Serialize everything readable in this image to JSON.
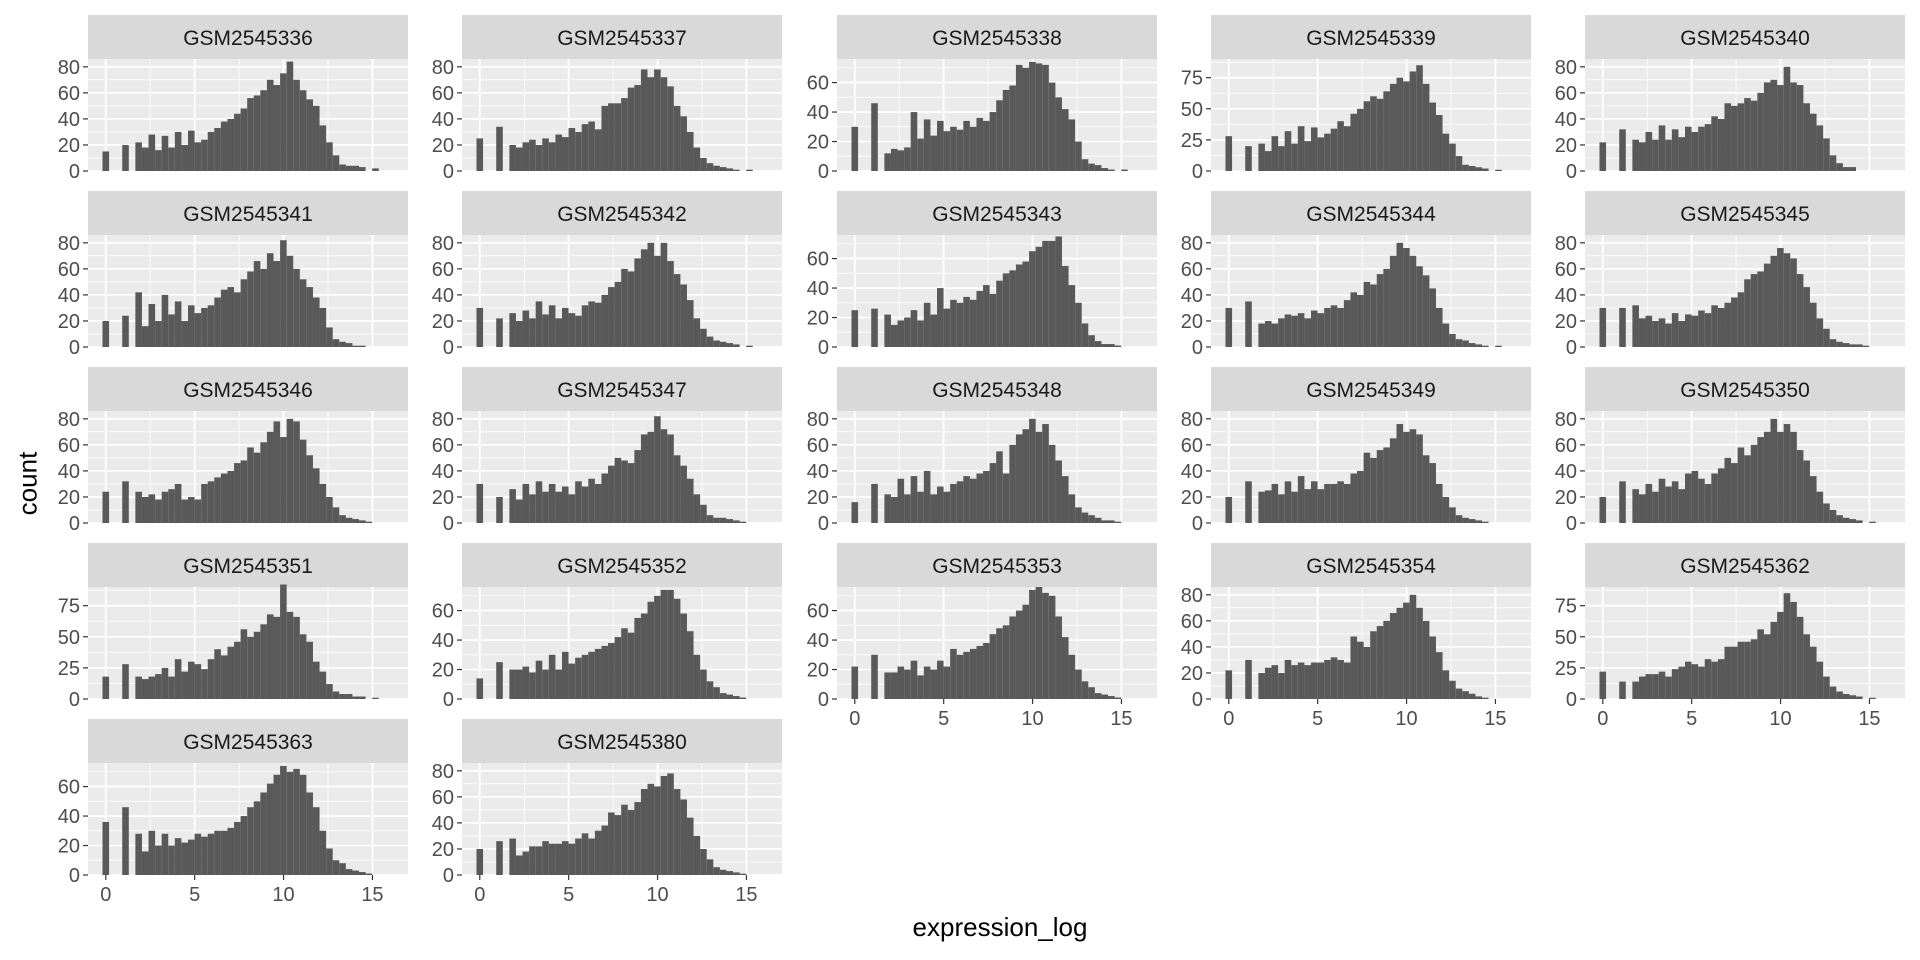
{
  "chart_data": {
    "type": "bar",
    "subtype": "faceted-histogram",
    "title": "",
    "xlabel": "expression_log",
    "ylabel": "count",
    "xlim": [
      -1,
      17
    ],
    "x_ticks": [
      0,
      5,
      10,
      15
    ],
    "bin_width": 0.37,
    "x": [
      0.0,
      0.37,
      0.74,
      1.11,
      1.48,
      1.85,
      2.22,
      2.59,
      2.96,
      3.33,
      3.7,
      4.07,
      4.44,
      4.81,
      5.18,
      5.55,
      5.92,
      6.29,
      6.66,
      7.03,
      7.4,
      7.77,
      8.14,
      8.51,
      8.88,
      9.25,
      9.62,
      9.99,
      10.36,
      10.73,
      11.1,
      11.47,
      11.84,
      12.21,
      12.58,
      12.95,
      13.32,
      13.69,
      14.06,
      14.43,
      14.8,
      15.17,
      15.54,
      15.91,
      16.28
    ],
    "grid": true,
    "legend": "none",
    "colors": {
      "bar": "#595959",
      "panel": "#ebebeb",
      "strip": "#d9d9d9",
      "grid": "#ffffff"
    },
    "facets": [
      {
        "name": "GSM2545336",
        "y_ticks": [
          0,
          20,
          40,
          60,
          80
        ],
        "ymax": 86,
        "values": [
          15,
          0,
          0,
          20,
          0,
          22,
          18,
          28,
          16,
          27,
          18,
          30,
          20,
          31,
          22,
          24,
          30,
          33,
          38,
          40,
          44,
          48,
          56,
          58,
          62,
          70,
          66,
          75,
          84,
          70,
          62,
          55,
          50,
          35,
          22,
          12,
          5,
          4,
          4,
          3,
          0,
          2,
          0,
          0,
          0
        ]
      },
      {
        "name": "GSM2545337",
        "y_ticks": [
          0,
          20,
          40,
          60,
          80
        ],
        "ymax": 86,
        "values": [
          25,
          0,
          0,
          34,
          0,
          20,
          18,
          22,
          24,
          20,
          25,
          22,
          28,
          26,
          33,
          30,
          36,
          38,
          32,
          50,
          52,
          52,
          56,
          64,
          66,
          78,
          72,
          78,
          72,
          65,
          50,
          42,
          30,
          18,
          10,
          6,
          4,
          3,
          2,
          1,
          0,
          1,
          0,
          0,
          0
        ]
      },
      {
        "name": "GSM2545338",
        "y_ticks": [
          0,
          20,
          40,
          60
        ],
        "ymax": 76,
        "values": [
          30,
          0,
          0,
          46,
          0,
          12,
          15,
          14,
          16,
          40,
          22,
          35,
          24,
          34,
          27,
          30,
          28,
          34,
          30,
          36,
          34,
          40,
          48,
          55,
          58,
          72,
          70,
          74,
          73,
          72,
          60,
          50,
          42,
          35,
          20,
          8,
          5,
          4,
          2,
          1,
          0,
          1,
          0,
          0,
          0
        ]
      },
      {
        "name": "GSM2545339",
        "y_ticks": [
          0,
          25,
          50,
          75
        ],
        "ymax": 90,
        "values": [
          28,
          0,
          0,
          20,
          0,
          22,
          16,
          28,
          20,
          32,
          22,
          36,
          24,
          35,
          27,
          30,
          34,
          40,
          36,
          46,
          50,
          56,
          60,
          58,
          64,
          70,
          75,
          72,
          80,
          85,
          70,
          55,
          45,
          30,
          22,
          12,
          5,
          4,
          3,
          2,
          0,
          1,
          0,
          0,
          0
        ]
      },
      {
        "name": "GSM2545340",
        "y_ticks": [
          0,
          20,
          40,
          60,
          80
        ],
        "ymax": 86,
        "values": [
          22,
          0,
          0,
          32,
          0,
          24,
          22,
          30,
          24,
          35,
          24,
          32,
          26,
          34,
          30,
          34,
          36,
          42,
          40,
          52,
          50,
          52,
          56,
          54,
          60,
          68,
          70,
          66,
          80,
          68,
          66,
          52,
          44,
          35,
          25,
          12,
          6,
          3,
          3,
          0,
          0,
          0,
          0,
          0,
          0
        ]
      },
      {
        "name": "GSM2545341",
        "y_ticks": [
          0,
          20,
          40,
          60,
          80
        ],
        "ymax": 86,
        "values": [
          20,
          0,
          0,
          24,
          0,
          42,
          16,
          33,
          20,
          40,
          25,
          35,
          20,
          32,
          26,
          30,
          32,
          38,
          44,
          46,
          42,
          52,
          58,
          66,
          60,
          72,
          66,
          82,
          70,
          60,
          52,
          46,
          38,
          30,
          15,
          6,
          4,
          3,
          1,
          1,
          0,
          0,
          0,
          0,
          0
        ]
      },
      {
        "name": "GSM2545342",
        "y_ticks": [
          0,
          20,
          40,
          60,
          80
        ],
        "ymax": 86,
        "values": [
          30,
          0,
          0,
          22,
          0,
          26,
          20,
          28,
          22,
          35,
          25,
          32,
          22,
          30,
          26,
          24,
          32,
          35,
          34,
          40,
          46,
          50,
          60,
          58,
          68,
          75,
          80,
          70,
          80,
          66,
          56,
          48,
          36,
          22,
          14,
          8,
          5,
          4,
          3,
          2,
          0,
          1,
          0,
          0,
          0
        ]
      },
      {
        "name": "GSM2545343",
        "y_ticks": [
          0,
          20,
          40,
          60
        ],
        "ymax": 76,
        "values": [
          25,
          0,
          0,
          26,
          0,
          22,
          15,
          18,
          20,
          25,
          18,
          30,
          22,
          40,
          26,
          32,
          30,
          34,
          32,
          38,
          42,
          36,
          45,
          50,
          52,
          56,
          58,
          65,
          68,
          72,
          72,
          75,
          55,
          42,
          30,
          16,
          8,
          4,
          2,
          2,
          1,
          0,
          0,
          0,
          0
        ]
      },
      {
        "name": "GSM2545344",
        "y_ticks": [
          0,
          20,
          40,
          60,
          80
        ],
        "ymax": 86,
        "values": [
          30,
          0,
          0,
          35,
          0,
          18,
          20,
          18,
          22,
          25,
          24,
          26,
          22,
          28,
          26,
          30,
          32,
          30,
          36,
          42,
          40,
          50,
          48,
          56,
          60,
          70,
          80,
          76,
          70,
          62,
          55,
          45,
          30,
          18,
          10,
          6,
          5,
          3,
          2,
          1,
          0,
          1,
          0,
          0,
          0
        ]
      },
      {
        "name": "GSM2545345",
        "y_ticks": [
          0,
          20,
          40,
          60,
          80
        ],
        "ymax": 86,
        "values": [
          30,
          0,
          0,
          30,
          0,
          32,
          22,
          24,
          20,
          22,
          18,
          26,
          20,
          25,
          24,
          28,
          26,
          32,
          30,
          34,
          38,
          42,
          52,
          56,
          58,
          64,
          70,
          76,
          72,
          68,
          56,
          46,
          34,
          22,
          14,
          6,
          4,
          3,
          2,
          2,
          1,
          0,
          0,
          0,
          0
        ]
      },
      {
        "name": "GSM2545346",
        "y_ticks": [
          0,
          20,
          40,
          60,
          80
        ],
        "ymax": 86,
        "values": [
          24,
          0,
          0,
          32,
          0,
          24,
          20,
          22,
          18,
          24,
          26,
          30,
          18,
          20,
          18,
          30,
          32,
          35,
          38,
          40,
          46,
          48,
          58,
          54,
          62,
          70,
          78,
          66,
          80,
          78,
          64,
          52,
          42,
          30,
          20,
          12,
          6,
          4,
          3,
          2,
          1,
          0,
          0,
          0,
          0
        ]
      },
      {
        "name": "GSM2545347",
        "y_ticks": [
          0,
          20,
          40,
          60,
          80
        ],
        "ymax": 86,
        "values": [
          30,
          0,
          0,
          20,
          0,
          26,
          18,
          30,
          22,
          32,
          24,
          30,
          24,
          28,
          22,
          32,
          28,
          34,
          30,
          38,
          44,
          50,
          48,
          46,
          56,
          68,
          70,
          82,
          72,
          68,
          52,
          44,
          34,
          22,
          14,
          6,
          4,
          4,
          3,
          2,
          1,
          0,
          0,
          0,
          0
        ]
      },
      {
        "name": "GSM2545348",
        "y_ticks": [
          0,
          20,
          40,
          60,
          80
        ],
        "ymax": 86,
        "values": [
          16,
          0,
          0,
          30,
          0,
          22,
          20,
          34,
          22,
          36,
          24,
          40,
          22,
          28,
          24,
          30,
          32,
          36,
          34,
          38,
          40,
          46,
          55,
          38,
          60,
          68,
          72,
          80,
          70,
          76,
          60,
          48,
          36,
          22,
          12,
          8,
          6,
          4,
          2,
          2,
          1,
          0,
          0,
          0,
          0
        ]
      },
      {
        "name": "GSM2545349",
        "y_ticks": [
          0,
          20,
          40,
          60,
          80
        ],
        "ymax": 86,
        "values": [
          20,
          0,
          0,
          32,
          0,
          24,
          25,
          30,
          22,
          32,
          24,
          36,
          26,
          32,
          26,
          30,
          30,
          32,
          30,
          38,
          40,
          54,
          50,
          56,
          58,
          65,
          76,
          70,
          72,
          68,
          52,
          46,
          30,
          20,
          12,
          6,
          4,
          3,
          2,
          1,
          0,
          0,
          0,
          0,
          0
        ]
      },
      {
        "name": "GSM2545350",
        "y_ticks": [
          0,
          20,
          40,
          60,
          80
        ],
        "ymax": 86,
        "values": [
          20,
          0,
          0,
          32,
          0,
          26,
          22,
          30,
          24,
          34,
          28,
          32,
          26,
          38,
          40,
          34,
          30,
          38,
          42,
          50,
          46,
          58,
          52,
          60,
          66,
          70,
          80,
          70,
          76,
          70,
          56,
          48,
          36,
          24,
          15,
          10,
          6,
          4,
          3,
          2,
          0,
          1,
          0,
          0,
          0
        ]
      },
      {
        "name": "GSM2545351",
        "y_ticks": [
          0,
          25,
          50,
          75
        ],
        "ymax": 90,
        "values": [
          18,
          0,
          0,
          28,
          0,
          18,
          16,
          18,
          20,
          25,
          18,
          32,
          22,
          30,
          28,
          24,
          32,
          40,
          35,
          42,
          46,
          56,
          50,
          54,
          60,
          68,
          66,
          92,
          70,
          66,
          52,
          46,
          30,
          22,
          12,
          6,
          4,
          4,
          2,
          2,
          0,
          1,
          0,
          0,
          0
        ]
      },
      {
        "name": "GSM2545352",
        "y_ticks": [
          0,
          20,
          40,
          60
        ],
        "ymax": 76,
        "values": [
          14,
          0,
          0,
          25,
          0,
          20,
          20,
          22,
          18,
          26,
          20,
          30,
          20,
          32,
          24,
          28,
          30,
          32,
          34,
          36,
          38,
          42,
          48,
          45,
          55,
          58,
          66,
          70,
          74,
          74,
          68,
          58,
          46,
          30,
          20,
          12,
          8,
          4,
          3,
          2,
          1,
          0,
          0,
          0,
          0
        ]
      },
      {
        "name": "GSM2545353",
        "y_ticks": [
          0,
          20,
          40,
          60
        ],
        "ymax": 76,
        "values": [
          22,
          0,
          0,
          30,
          0,
          18,
          18,
          22,
          20,
          26,
          16,
          22,
          20,
          26,
          22,
          34,
          30,
          32,
          34,
          36,
          38,
          44,
          48,
          50,
          56,
          60,
          64,
          74,
          76,
          72,
          70,
          56,
          42,
          30,
          20,
          12,
          8,
          4,
          3,
          2,
          1,
          0,
          0,
          0,
          0
        ]
      },
      {
        "name": "GSM2545354",
        "y_ticks": [
          0,
          20,
          40,
          60,
          80
        ],
        "ymax": 86,
        "values": [
          22,
          0,
          0,
          30,
          0,
          20,
          24,
          26,
          20,
          30,
          26,
          28,
          26,
          28,
          28,
          30,
          32,
          30,
          28,
          48,
          44,
          40,
          52,
          56,
          60,
          66,
          70,
          74,
          80,
          70,
          60,
          48,
          36,
          22,
          14,
          8,
          6,
          4,
          2,
          1,
          0,
          0,
          0,
          0,
          0
        ]
      },
      {
        "name": "GSM2545362",
        "y_ticks": [
          0,
          25,
          50,
          75
        ],
        "ymax": 90,
        "values": [
          22,
          0,
          0,
          14,
          0,
          14,
          18,
          20,
          20,
          22,
          18,
          24,
          26,
          30,
          28,
          26,
          32,
          30,
          32,
          42,
          42,
          46,
          46,
          48,
          56,
          52,
          62,
          70,
          85,
          78,
          66,
          52,
          42,
          30,
          18,
          10,
          6,
          4,
          3,
          2,
          0,
          1,
          0,
          0,
          0
        ]
      },
      {
        "name": "GSM2545363",
        "y_ticks": [
          0,
          20,
          40,
          60
        ],
        "ymax": 76,
        "values": [
          36,
          0,
          0,
          46,
          0,
          28,
          16,
          30,
          20,
          28,
          20,
          25,
          22,
          24,
          28,
          26,
          28,
          30,
          30,
          32,
          36,
          40,
          46,
          50,
          56,
          62,
          68,
          74,
          70,
          72,
          68,
          56,
          46,
          30,
          18,
          10,
          8,
          4,
          3,
          2,
          1,
          0,
          0,
          0,
          0
        ]
      },
      {
        "name": "GSM2545380",
        "y_ticks": [
          0,
          20,
          40,
          60,
          80
        ],
        "ymax": 86,
        "values": [
          20,
          0,
          0,
          26,
          0,
          28,
          15,
          18,
          22,
          22,
          26,
          24,
          24,
          26,
          24,
          28,
          32,
          28,
          34,
          38,
          48,
          46,
          54,
          50,
          56,
          66,
          70,
          68,
          76,
          78,
          66,
          58,
          44,
          30,
          20,
          12,
          6,
          4,
          3,
          2,
          1,
          0,
          0,
          0,
          0
        ]
      }
    ]
  }
}
